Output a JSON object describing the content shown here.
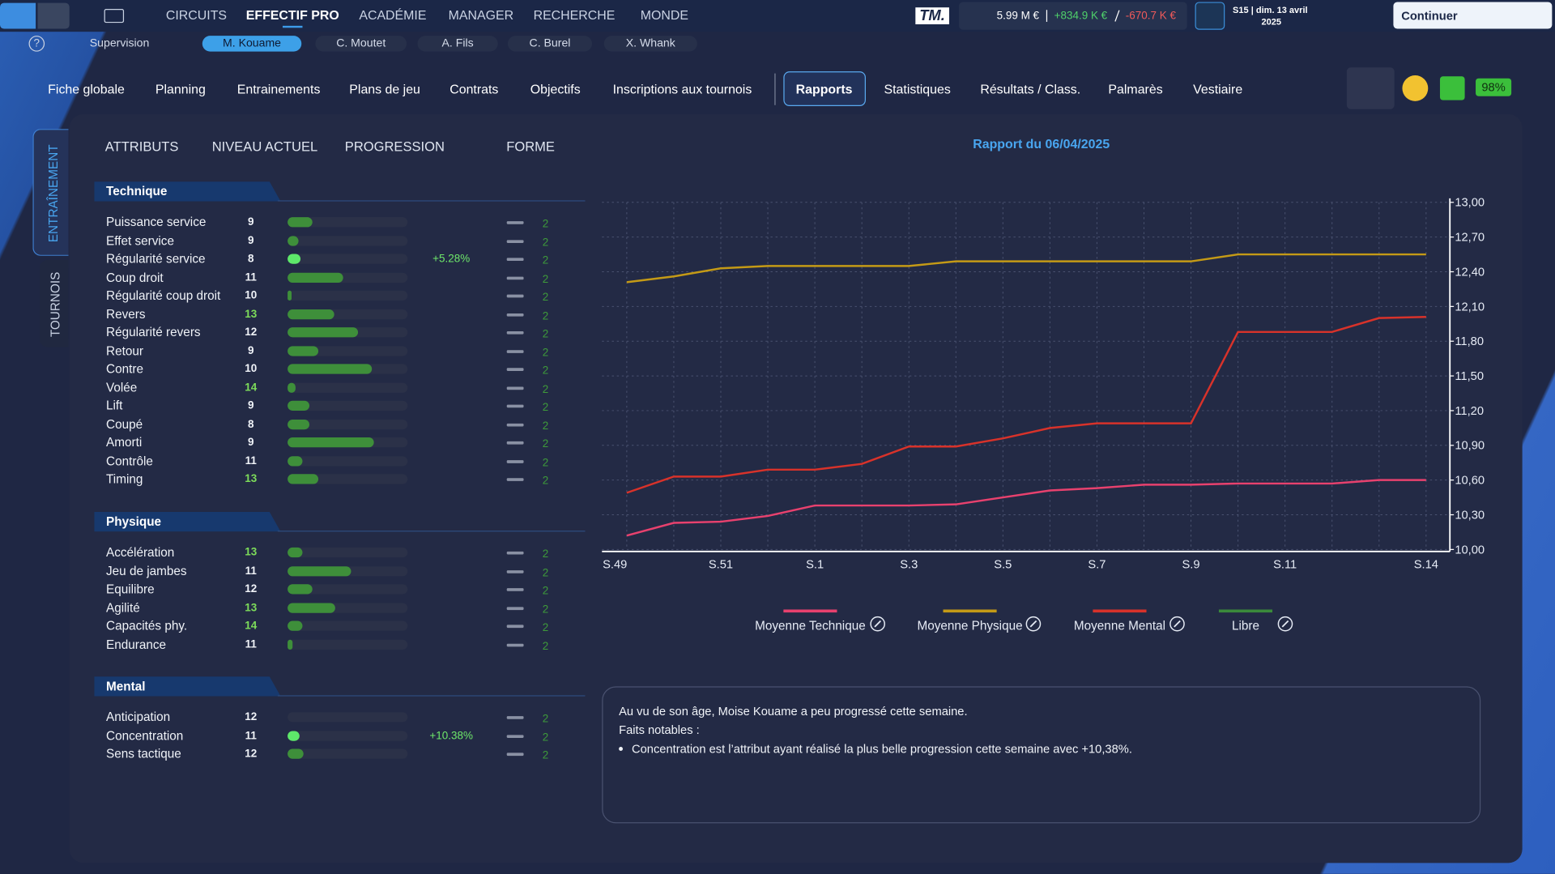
{
  "top_bar": {
    "nav": [
      "CIRCUITS",
      "EFFECTIF PRO",
      "ACADÉMIE",
      "MANAGER",
      "RECHERCHE",
      "MONDE"
    ],
    "logo": "TM.",
    "budget": "5.99 M €",
    "income": "+834.9 K €",
    "expense": "-670.7 K €",
    "date_line": "S15 | dim. 13 avril",
    "date_year": "2025",
    "continue": "Continuer"
  },
  "player_tabs": [
    "Supervision",
    "M. Kouame",
    "C. Moutet",
    "A. Fils",
    "C. Burel",
    "X. Whank"
  ],
  "section_tabs": [
    "Fiche globale",
    "Planning",
    "Entrainements",
    "Plans de jeu",
    "Contrats",
    "Objectifs",
    "Inscriptions aux tournois",
    "Rapports",
    "Statistiques",
    "Résultats / Class.",
    "Palmarès",
    "Vestiaire"
  ],
  "status": {
    "fitness": "98%"
  },
  "side_tabs": [
    "ENTRAÎNEMENT",
    "TOURNOIS"
  ],
  "columns": [
    "ATTRIBUTS",
    "NIVEAU ACTUEL",
    "PROGRESSION",
    "FORME"
  ],
  "groups": [
    {
      "name": "Technique",
      "rows": [
        {
          "label": "Puissance service",
          "level": 9,
          "progress": 21,
          "form": 2
        },
        {
          "label": "Effet service",
          "level": 9,
          "progress": 9,
          "form": 2
        },
        {
          "label": "Régularité service",
          "level": 8,
          "progress": 11,
          "change": "+5.28%",
          "form": 2
        },
        {
          "label": "Coup droit",
          "level": 11,
          "progress": 46,
          "form": 2
        },
        {
          "label": "Régularité coup droit",
          "level": 10,
          "progress": 3,
          "form": 2
        },
        {
          "label": "Revers",
          "level": 13,
          "progress": 39,
          "form": 2
        },
        {
          "label": "Régularité revers",
          "level": 12,
          "progress": 59,
          "form": 2
        },
        {
          "label": "Retour",
          "level": 9,
          "progress": 26,
          "form": 2
        },
        {
          "label": "Contre",
          "level": 10,
          "progress": 70,
          "form": 2
        },
        {
          "label": "Volée",
          "level": 14,
          "progress": 7,
          "form": 2
        },
        {
          "label": "Lift",
          "level": 9,
          "progress": 18,
          "form": 2
        },
        {
          "label": "Coupé",
          "level": 8,
          "progress": 18,
          "form": 2
        },
        {
          "label": "Amorti",
          "level": 9,
          "progress": 72,
          "form": 2
        },
        {
          "label": "Contrôle",
          "level": 11,
          "progress": 12,
          "form": 2
        },
        {
          "label": "Timing",
          "level": 13,
          "progress": 26,
          "form": 2
        }
      ]
    },
    {
      "name": "Physique",
      "rows": [
        {
          "label": "Accélération",
          "level": 13,
          "progress": 12,
          "form": 2
        },
        {
          "label": "Jeu de jambes",
          "level": 11,
          "progress": 53,
          "form": 2
        },
        {
          "label": "Equilibre",
          "level": 12,
          "progress": 21,
          "form": 2
        },
        {
          "label": "Agilité",
          "level": 13,
          "progress": 40,
          "form": 2
        },
        {
          "label": "Capacités phy.",
          "level": 14,
          "progress": 12,
          "form": 2
        },
        {
          "label": "Endurance",
          "level": 11,
          "progress": 4,
          "form": 2
        }
      ]
    },
    {
      "name": "Mental",
      "rows": [
        {
          "label": "Anticipation",
          "level": 12,
          "progress": 0,
          "form": 2
        },
        {
          "label": "Concentration",
          "level": 11,
          "progress": 10,
          "change": "+10.38%",
          "form": 2
        },
        {
          "label": "Sens tactique",
          "level": 12,
          "progress": 13,
          "form": 2
        }
      ]
    }
  ],
  "chart_data": {
    "type": "line",
    "title": "Rapport du 06/04/2025",
    "categories": [
      "S.49",
      null,
      "S.51",
      null,
      "S.1",
      null,
      "S.3",
      null,
      "S.5",
      null,
      "S.7",
      null,
      "S.9",
      null,
      "S.11",
      null,
      null,
      "S.14"
    ],
    "series": [
      {
        "name": "Moyenne Technique",
        "color": "#e8416e",
        "values": [
          10.12,
          10.23,
          10.24,
          10.29,
          10.38,
          10.38,
          10.38,
          10.39,
          10.45,
          10.51,
          10.53,
          10.56,
          10.56,
          10.57,
          10.57,
          10.57,
          10.6,
          10.6
        ]
      },
      {
        "name": "Moyenne Physique",
        "color": "#c49a16",
        "values": [
          12.31,
          12.36,
          12.43,
          12.45,
          12.45,
          12.45,
          12.45,
          12.49,
          12.49,
          12.49,
          12.49,
          12.49,
          12.49,
          12.55,
          12.55,
          12.55,
          12.55,
          12.55
        ]
      },
      {
        "name": "Moyenne Mental",
        "color": "#d8322a",
        "values": [
          10.49,
          10.63,
          10.63,
          10.69,
          10.69,
          10.74,
          10.89,
          10.89,
          10.96,
          11.05,
          11.09,
          11.09,
          11.09,
          11.88,
          11.88,
          11.88,
          12.0,
          12.01
        ]
      },
      {
        "name": "Libre",
        "color": "#3b8a3b",
        "values": [
          null,
          null,
          null,
          null,
          null,
          null,
          null,
          null,
          null,
          null,
          null,
          null,
          null,
          null,
          null,
          null,
          null,
          null
        ]
      }
    ],
    "ylim": [
      10,
      13
    ],
    "yticks": [
      {
        "value": 10,
        "label": "10,00"
      },
      {
        "value": 10.3,
        "label": "10,30"
      },
      {
        "value": 10.6,
        "label": "10,60"
      },
      {
        "value": 10.9,
        "label": "10,90"
      },
      {
        "value": 11.2,
        "label": "11,20"
      },
      {
        "value": 11.5,
        "label": "11,50"
      },
      {
        "value": 11.8,
        "label": "11,80"
      },
      {
        "value": 12.1,
        "label": "12,10"
      },
      {
        "value": 12.4,
        "label": "12,40"
      },
      {
        "value": 12.7,
        "label": "12,70"
      },
      {
        "value": 13,
        "label": "13,00"
      }
    ],
    "grid": true,
    "legend": "bottom"
  },
  "report": {
    "lines": [
      "Au vu de son âge, Moise Kouame a peu progressé cette semaine.",
      "Faits notables :"
    ],
    "bullets": [
      "Concentration est l’attribut ayant réalisé la plus belle progression cette semaine avec +10,38%."
    ]
  }
}
